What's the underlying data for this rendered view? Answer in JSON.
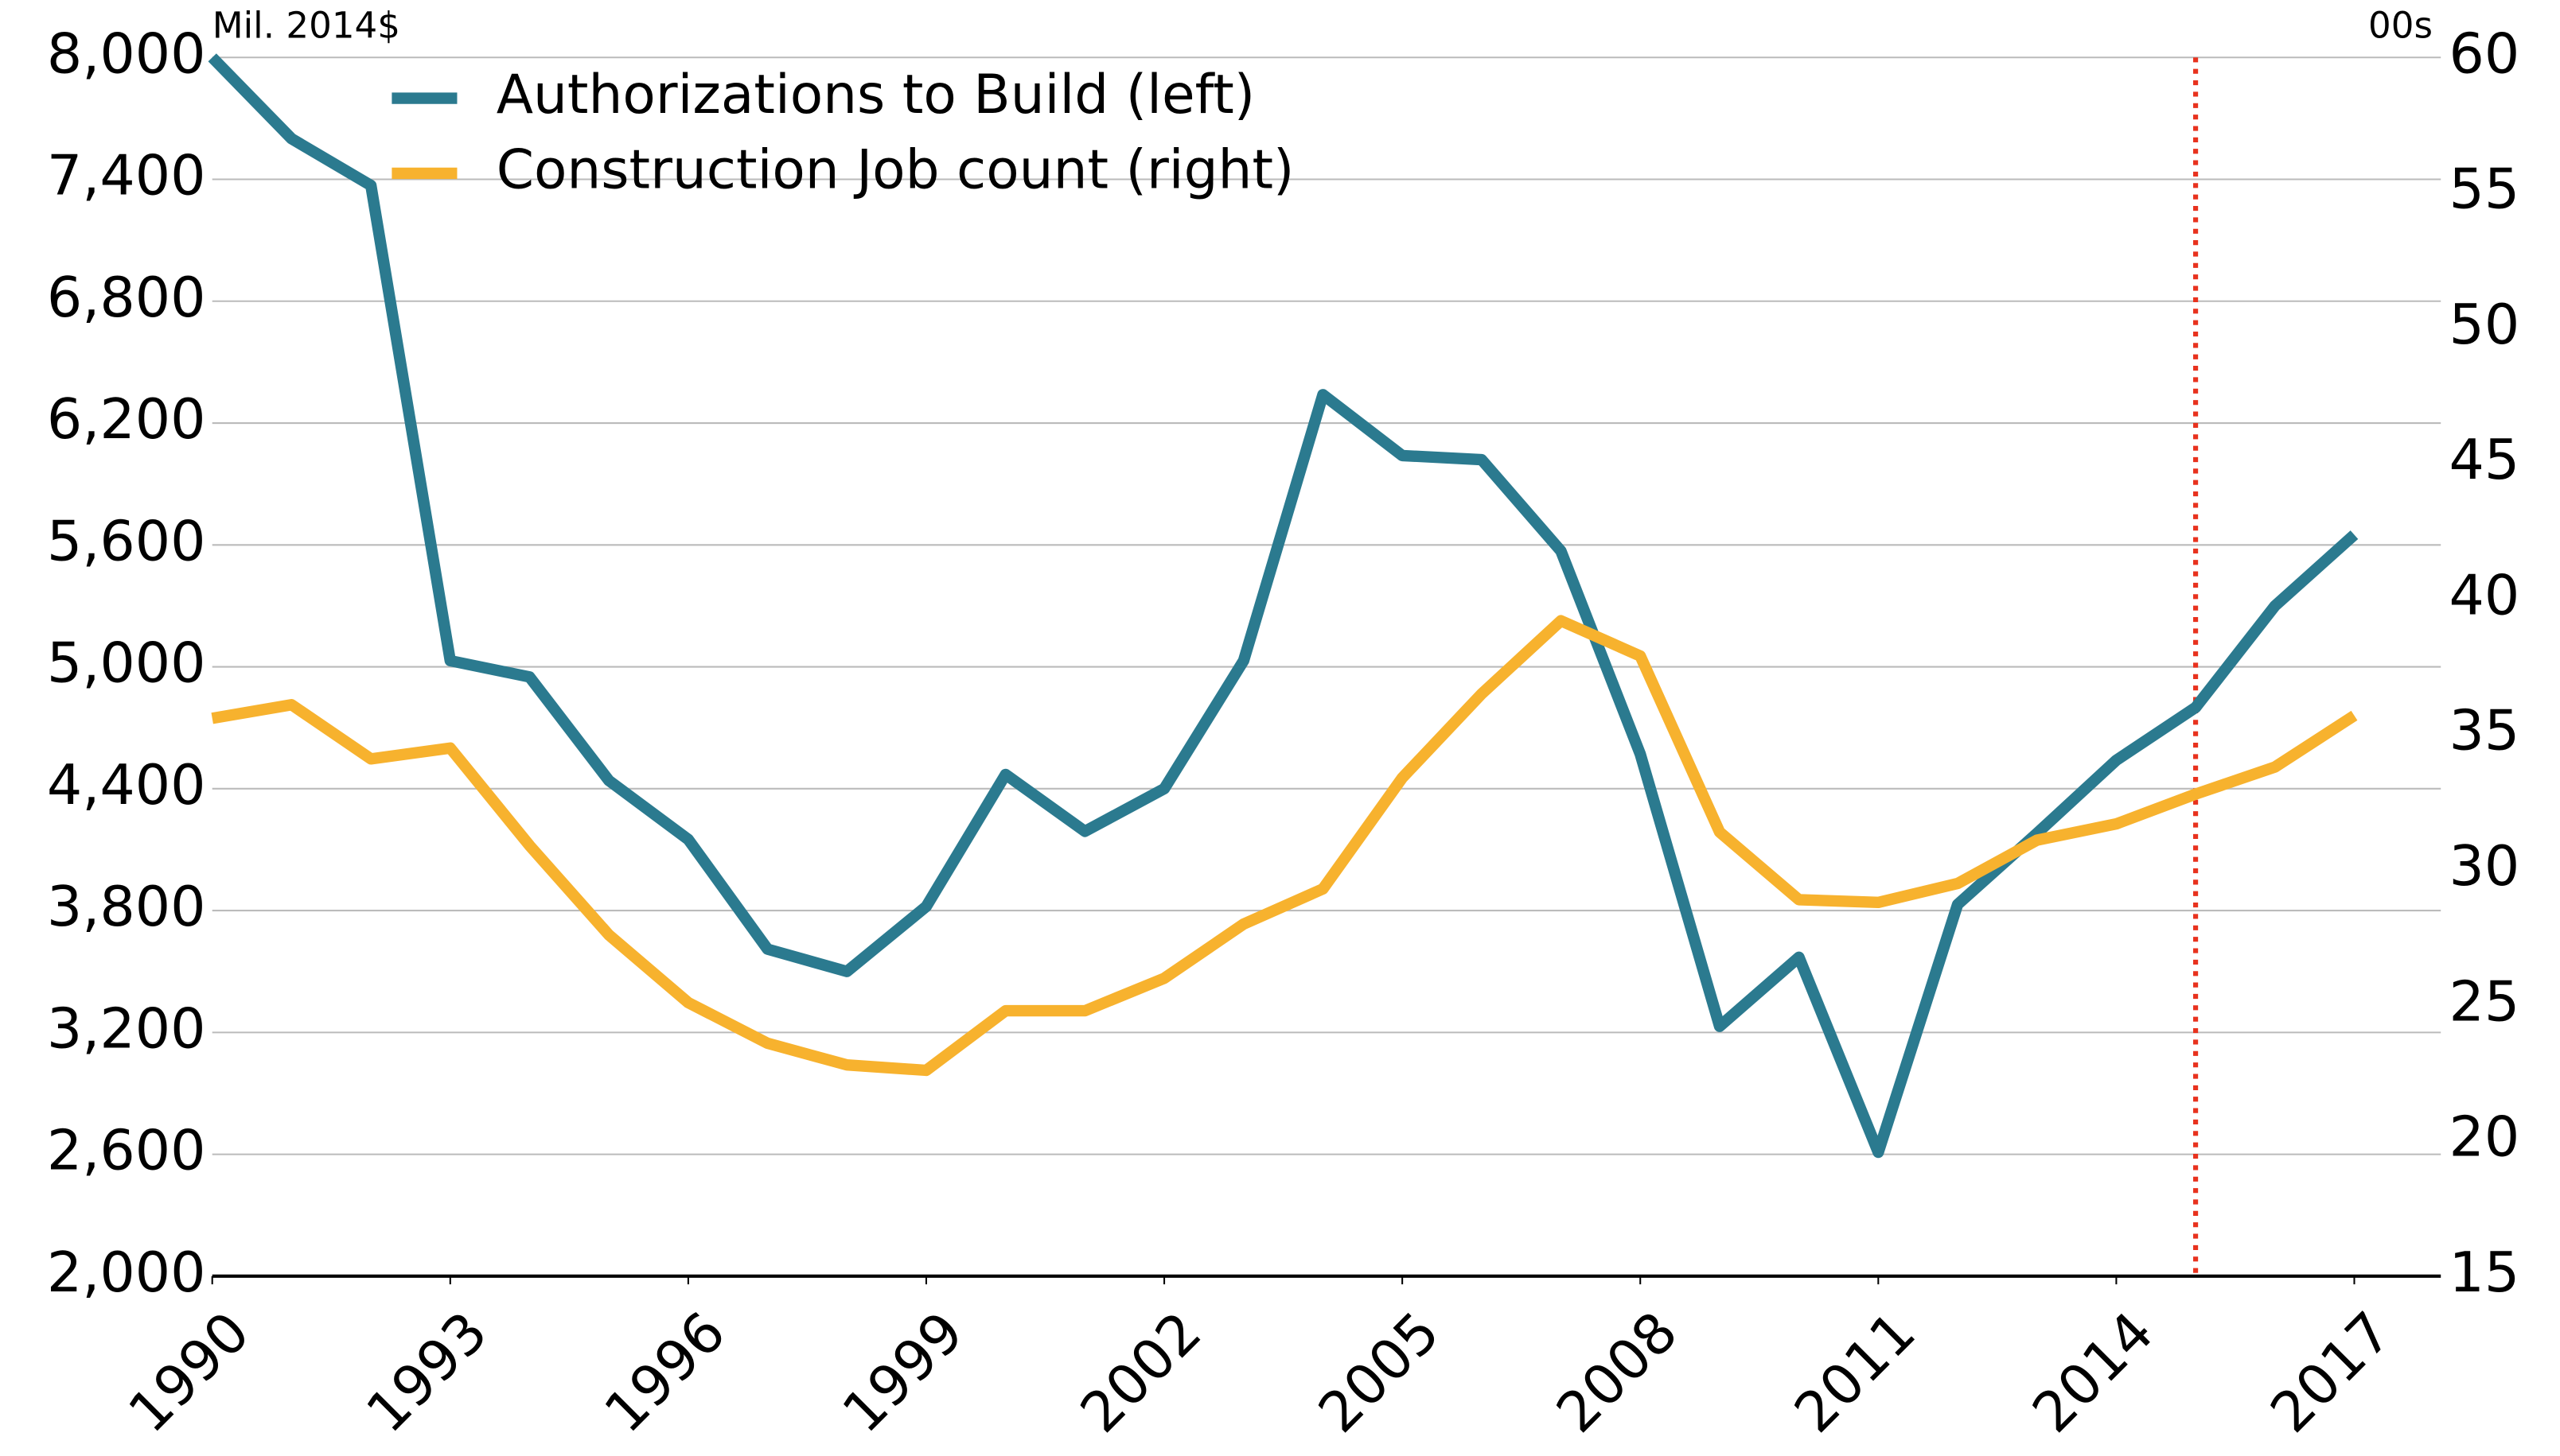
{
  "chart_data": {
    "type": "line",
    "y_unit_label": "Mil. 2014$",
    "y2_unit_label": "00s",
    "x": [
      1990,
      1991,
      1992,
      1993,
      1994,
      1995,
      1996,
      1997,
      1998,
      1999,
      2000,
      2001,
      2002,
      2003,
      2004,
      2005,
      2006,
      2007,
      2008,
      2009,
      2010,
      2011,
      2012,
      2013,
      2014,
      2015,
      2016,
      2017
    ],
    "xlim": [
      1990,
      2017
    ],
    "xticks": [
      1990,
      1993,
      1996,
      1999,
      2002,
      2005,
      2008,
      2011,
      2014,
      2017
    ],
    "ylim": [
      2000,
      8000
    ],
    "yticks": [
      {
        "value": 2000,
        "label": "2,000"
      },
      {
        "value": 2600,
        "label": "2,600"
      },
      {
        "value": 3200,
        "label": "3,200"
      },
      {
        "value": 3800,
        "label": "3,800"
      },
      {
        "value": 4400,
        "label": "4,400"
      },
      {
        "value": 5000,
        "label": "5,000"
      },
      {
        "value": 5600,
        "label": "5,600"
      },
      {
        "value": 6200,
        "label": "6,200"
      },
      {
        "value": 6800,
        "label": "6,800"
      },
      {
        "value": 7400,
        "label": "7,400"
      },
      {
        "value": 8000,
        "label": "8,000"
      }
    ],
    "y2lim": [
      15,
      60
    ],
    "y2ticks": [
      15,
      20,
      25,
      30,
      35,
      40,
      45,
      50,
      55,
      60
    ],
    "grid": true,
    "legend": "upper left",
    "vline": {
      "x": 2015,
      "color": "#e8321e"
    },
    "series": [
      {
        "name": "Authorizations to Build (left)",
        "color": "#2b7a8f",
        "axis": "y",
        "values": [
          8000,
          7600,
          7370,
          5030,
          4950,
          4440,
          4150,
          3610,
          3500,
          3820,
          4470,
          4190,
          4400,
          5030,
          6340,
          6040,
          6020,
          5570,
          4570,
          3230,
          3570,
          2610,
          3830,
          4180,
          4540,
          4800,
          5300,
          5650
        ]
      },
      {
        "name": "Construction Job count (right)",
        "color": "#f7b22e",
        "axis": "y2",
        "values": [
          35.6,
          36.1,
          34.1,
          34.5,
          30.9,
          27.6,
          25.1,
          23.6,
          22.8,
          22.6,
          24.8,
          24.8,
          26.0,
          28.0,
          29.3,
          33.4,
          36.5,
          39.2,
          37.9,
          31.4,
          28.9,
          28.8,
          29.5,
          31.1,
          31.7,
          32.8,
          33.8,
          35.7
        ]
      }
    ]
  }
}
